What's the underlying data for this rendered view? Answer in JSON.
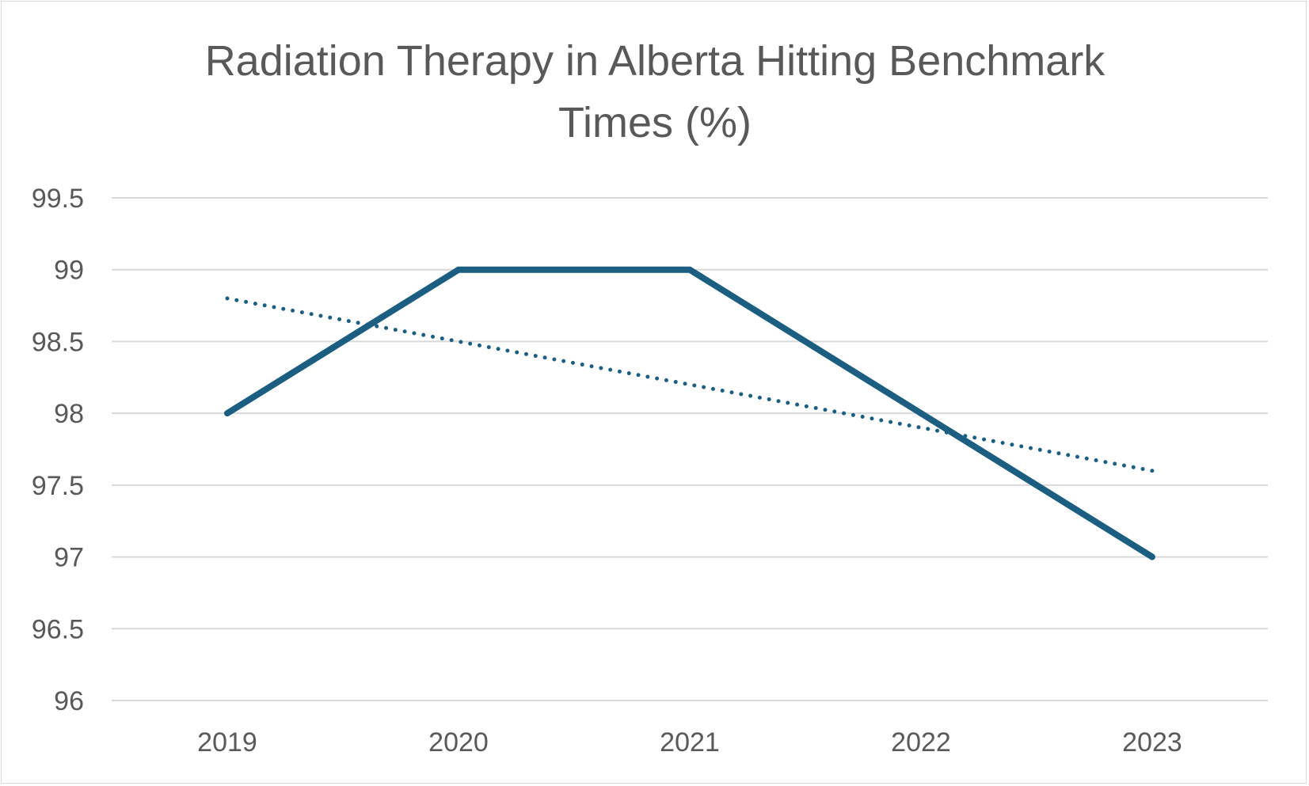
{
  "chart_data": {
    "type": "line",
    "title": "Radiation Therapy in Alberta Hitting Benchmark Times (%)",
    "title_lines": [
      "Radiation Therapy in Alberta Hitting Benchmark",
      "Times (%)"
    ],
    "xlabel": "",
    "ylabel": "",
    "categories": [
      "2019",
      "2020",
      "2021",
      "2022",
      "2023"
    ],
    "series": [
      {
        "values": [
          98,
          99,
          99,
          98,
          97
        ],
        "color": "#1b5e82",
        "style": "solid"
      }
    ],
    "trendline": {
      "kind": "linear",
      "values": [
        98.8,
        98.5,
        98.2,
        97.9,
        97.6
      ],
      "color": "#1b5e82",
      "style": "dotted"
    },
    "ylim": [
      96,
      99.5
    ],
    "yticks": [
      "96",
      "96.5",
      "97",
      "97.5",
      "98",
      "98.5",
      "99",
      "99.5"
    ],
    "ytick_values": [
      96,
      96.5,
      97,
      97.5,
      98,
      98.5,
      99,
      99.5
    ],
    "grid": true,
    "legend": "none"
  }
}
